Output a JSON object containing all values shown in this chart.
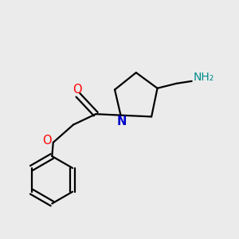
{
  "background_color": "#ebebeb",
  "bond_color": "#000000",
  "bond_width": 1.6,
  "atom_colors": {
    "O": "#ff0000",
    "N": "#0000cc",
    "NH2": "#008b8b"
  },
  "font_size_atoms": 10.5,
  "font_size_NH2": 10,
  "xlim": [
    0.0,
    1.0
  ],
  "ylim": [
    0.0,
    1.0
  ]
}
